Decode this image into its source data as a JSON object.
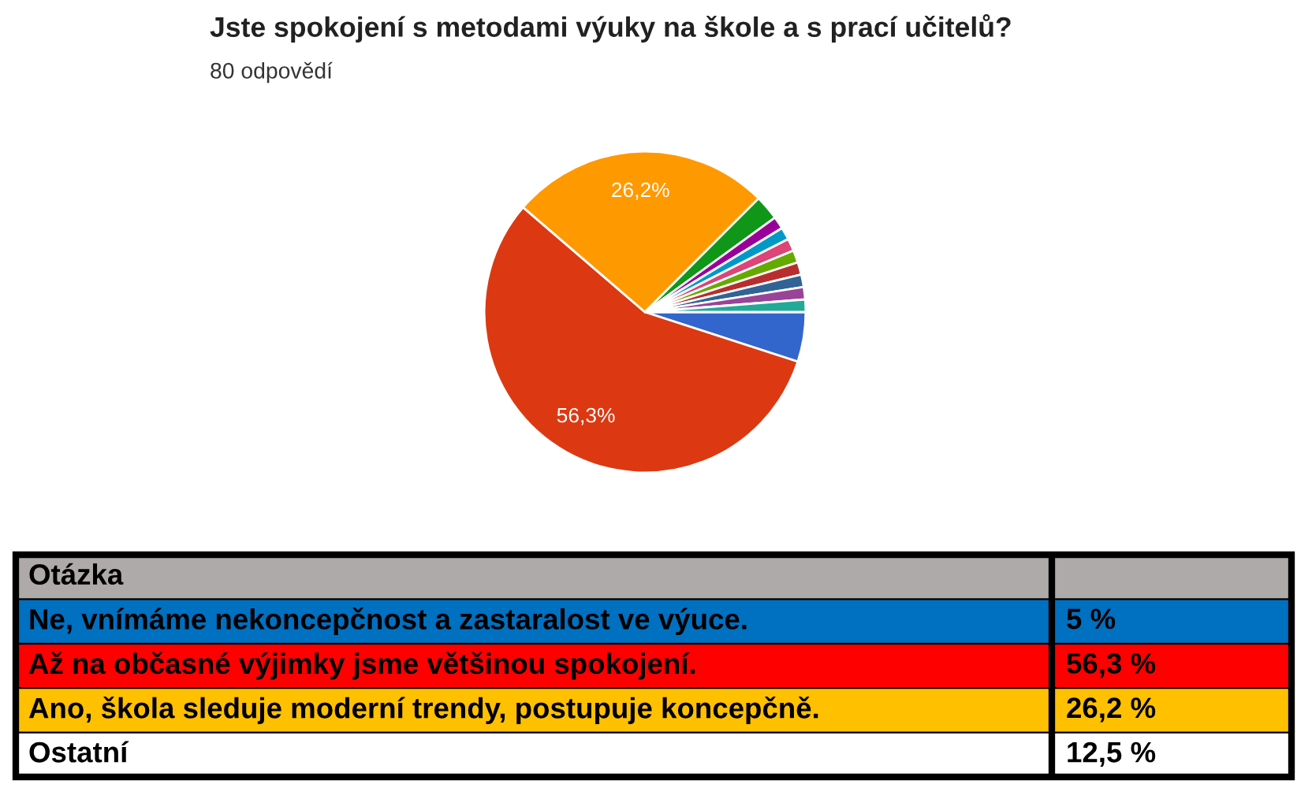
{
  "chart_data": [
    {
      "type": "pie",
      "title": "Jste spokojení s metodami výuky na škole a s prací učitelů?",
      "subtitle": "80 odpovědí",
      "categories": [
        null,
        null,
        null,
        null,
        null,
        null,
        null,
        null,
        null,
        null,
        null,
        null
      ],
      "values": [
        5,
        56.3,
        26.2,
        2.5,
        1.25,
        1.25,
        1.25,
        1.25,
        1.25,
        1.25,
        1.25,
        1.25
      ],
      "colors": [
        "#3366cc",
        "#dc3912",
        "#ff9900",
        "#109618",
        "#990099",
        "#0099c6",
        "#dd4477",
        "#66aa00",
        "#b82e2e",
        "#316395",
        "#994499",
        "#22aa99"
      ],
      "value_labels": [
        null,
        "56,3%",
        "26,2%",
        null,
        null,
        null,
        null,
        null,
        null,
        null,
        null,
        null
      ]
    },
    {
      "type": "other",
      "legend_title": "Otázka",
      "categories": [
        "Ne, vnímáme nekoncepčnost a zastaralost ve výuce.",
        "Až na občasné výjimky jsme většinou spokojení.",
        "Ano, škola sleduje moderní trendy, postupuje koncepčně.",
        "Ostatní"
      ],
      "value_labels": [
        "5 %",
        "56,3 %",
        "26,2 %",
        "12,5 %"
      ],
      "colors": [
        "#0070c0",
        "#ff0000",
        "#ffc000",
        "#ffffff"
      ]
    }
  ]
}
